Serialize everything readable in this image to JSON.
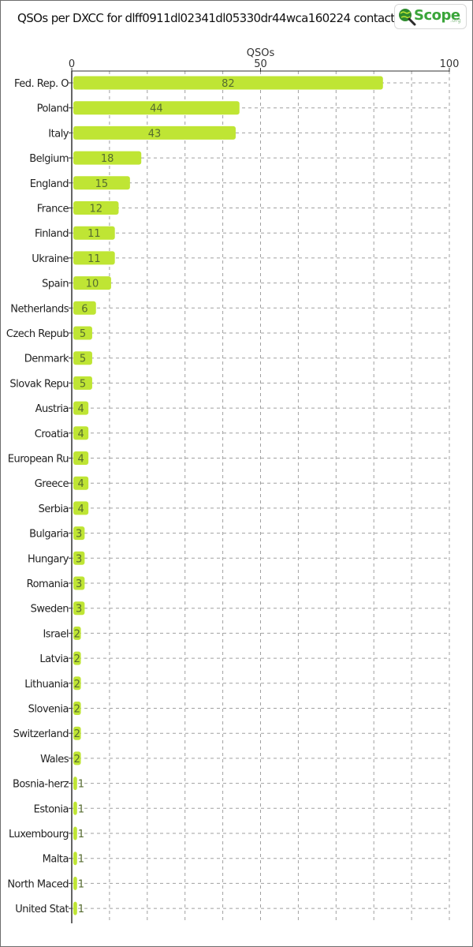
{
  "header": {
    "title": "QSOs per DXCC for dlff0911dl02341dl05330dr44wca160224 contacts",
    "logo_word": "Scope",
    "logo_sub": ".org",
    "logo_icon": "magnifier-globe-icon"
  },
  "colors": {
    "bar": "#bfe534",
    "grid": "#a0a0a0",
    "axis": "#333333"
  },
  "chart_data": {
    "type": "bar",
    "orientation": "horizontal",
    "title": "QSOs per DXCC for dlff0911dl02341dl05330dr44wca160224 contacts",
    "xlabel": "QSOs",
    "xlim": [
      0,
      100
    ],
    "xticks": [
      0,
      50,
      100
    ],
    "axis_position": "top",
    "grid": true,
    "categories": [
      "Fed. Rep. O",
      "Poland",
      "Italy",
      "Belgium",
      "England",
      "France",
      "Finland",
      "Ukraine",
      "Spain",
      "Netherlands",
      "Czech Repub",
      "Denmark",
      "Slovak Repu",
      "Austria",
      "Croatia",
      "European Ru",
      "Greece",
      "Serbia",
      "Bulgaria",
      "Hungary",
      "Romania",
      "Sweden",
      "Israel",
      "Latvia",
      "Lithuania",
      "Slovenia",
      "Switzerland",
      "Wales",
      "Bosnia-herz",
      "Estonia",
      "Luxembourg",
      "Malta",
      "North Maced",
      "United Stat"
    ],
    "values": [
      82,
      44,
      43,
      18,
      15,
      12,
      11,
      11,
      10,
      6,
      5,
      5,
      5,
      4,
      4,
      4,
      4,
      4,
      3,
      3,
      3,
      3,
      2,
      2,
      2,
      2,
      2,
      2,
      1,
      1,
      1,
      1,
      1,
      1
    ]
  }
}
